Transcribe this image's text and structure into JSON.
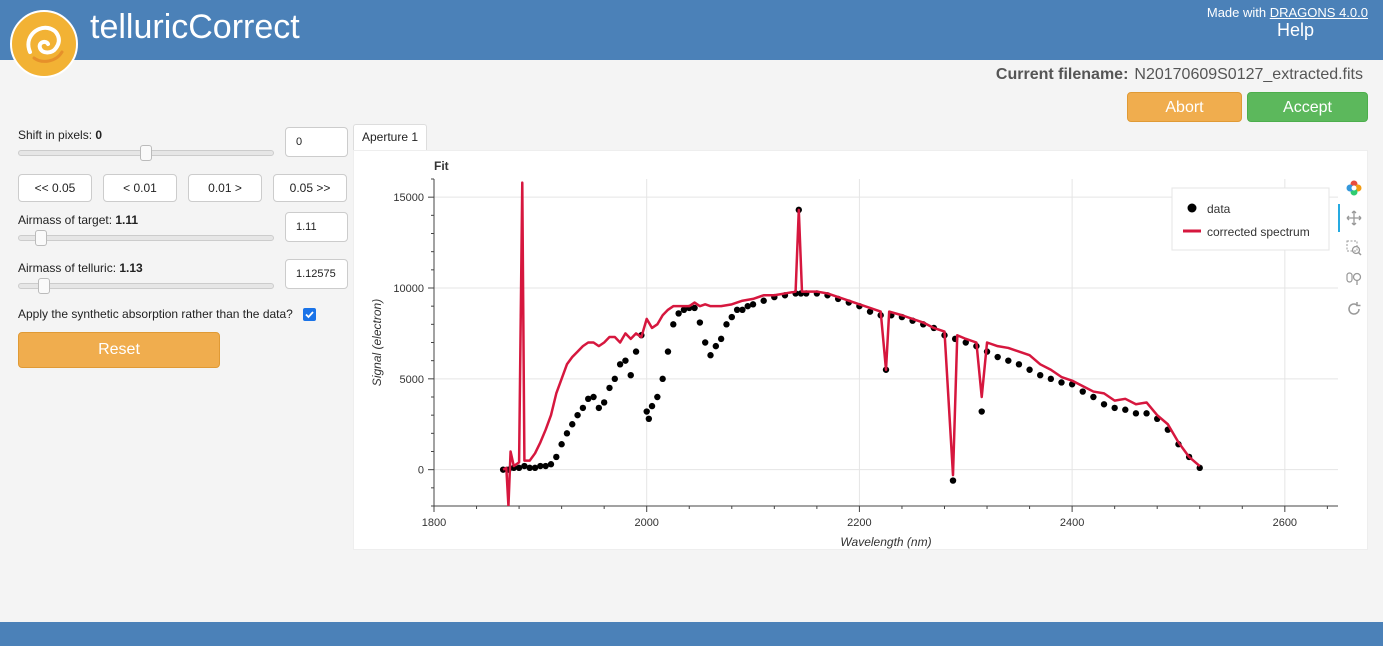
{
  "header": {
    "title": "telluricCorrect",
    "help_label": "Help",
    "color": "#4b81b8"
  },
  "file": {
    "label": "Current filename:",
    "name": "N20170609S0127_extracted.fits"
  },
  "actions": {
    "abort_label": "Abort",
    "accept_label": "Accept",
    "abort_color": "#f0ad4e",
    "accept_color": "#5cb85c"
  },
  "controls": {
    "shift": {
      "label": "Shift in pixels:",
      "value": "0",
      "input": "0",
      "slider_fraction": 0.5
    },
    "steps": [
      "<< 0.05",
      "< 0.01",
      "0.01 >",
      "0.05 >>"
    ],
    "airmass_target": {
      "label": "Airmass of target:",
      "value": "1.11",
      "input": "1.11",
      "slider_fraction": 0.07
    },
    "airmass_telluric": {
      "label": "Airmass of telluric:",
      "value": "1.13",
      "input": "1.12575",
      "slider_fraction": 0.08
    },
    "synthetic": {
      "label": "Apply the synthetic absorption rather than the data?",
      "checked": true
    },
    "reset_label": "Reset"
  },
  "tabs": [
    "Aperture 1"
  ],
  "plot": {
    "title": "Fit"
  },
  "toolbar_icons": [
    "bokeh-logo-icon",
    "pan-icon",
    "box-zoom-icon",
    "wheel-zoom-icon",
    "reset-icon"
  ],
  "chart_data": {
    "type": "line",
    "title": "Fit",
    "xlabel": "Wavelength (nm)",
    "ylabel": "Signal (electron)",
    "xlim": [
      1800,
      2650
    ],
    "ylim": [
      -2000,
      16000
    ],
    "xticks": [
      1800,
      2000,
      2200,
      2400,
      2600
    ],
    "yticks": [
      0,
      5000,
      10000,
      15000
    ],
    "grid": true,
    "legend": "top-right",
    "series": [
      {
        "name": "data",
        "kind": "scatter",
        "color": "#000000",
        "points": [
          [
            1865,
            0
          ],
          [
            1870,
            0
          ],
          [
            1875,
            100
          ],
          [
            1880,
            100
          ],
          [
            1885,
            200
          ],
          [
            1890,
            100
          ],
          [
            1895,
            100
          ],
          [
            1900,
            200
          ],
          [
            1905,
            200
          ],
          [
            1910,
            300
          ],
          [
            1915,
            700
          ],
          [
            1920,
            1400
          ],
          [
            1925,
            2000
          ],
          [
            1930,
            2500
          ],
          [
            1935,
            3000
          ],
          [
            1940,
            3400
          ],
          [
            1945,
            3900
          ],
          [
            1950,
            4000
          ],
          [
            1955,
            3400
          ],
          [
            1960,
            3700
          ],
          [
            1965,
            4500
          ],
          [
            1970,
            5000
          ],
          [
            1975,
            5800
          ],
          [
            1980,
            6000
          ],
          [
            1985,
            5200
          ],
          [
            1990,
            6500
          ],
          [
            1995,
            7400
          ],
          [
            2000,
            3200
          ],
          [
            2002,
            2800
          ],
          [
            2005,
            3500
          ],
          [
            2010,
            4000
          ],
          [
            2015,
            5000
          ],
          [
            2020,
            6500
          ],
          [
            2025,
            8000
          ],
          [
            2030,
            8600
          ],
          [
            2035,
            8800
          ],
          [
            2040,
            8900
          ],
          [
            2045,
            8900
          ],
          [
            2050,
            8100
          ],
          [
            2055,
            7000
          ],
          [
            2060,
            6300
          ],
          [
            2065,
            6800
          ],
          [
            2070,
            7200
          ],
          [
            2075,
            8000
          ],
          [
            2080,
            8400
          ],
          [
            2085,
            8800
          ],
          [
            2090,
            8800
          ],
          [
            2095,
            9000
          ],
          [
            2100,
            9100
          ],
          [
            2110,
            9300
          ],
          [
            2120,
            9500
          ],
          [
            2130,
            9600
          ],
          [
            2140,
            9700
          ],
          [
            2143,
            14300
          ],
          [
            2145,
            9700
          ],
          [
            2150,
            9700
          ],
          [
            2160,
            9700
          ],
          [
            2170,
            9600
          ],
          [
            2180,
            9400
          ],
          [
            2190,
            9200
          ],
          [
            2200,
            9000
          ],
          [
            2210,
            8700
          ],
          [
            2220,
            8500
          ],
          [
            2225,
            5500
          ],
          [
            2230,
            8500
          ],
          [
            2240,
            8400
          ],
          [
            2250,
            8200
          ],
          [
            2260,
            8000
          ],
          [
            2270,
            7800
          ],
          [
            2280,
            7400
          ],
          [
            2288,
            -600
          ],
          [
            2290,
            7200
          ],
          [
            2300,
            7000
          ],
          [
            2310,
            6800
          ],
          [
            2315,
            3200
          ],
          [
            2320,
            6500
          ],
          [
            2330,
            6200
          ],
          [
            2340,
            6000
          ],
          [
            2350,
            5800
          ],
          [
            2360,
            5500
          ],
          [
            2370,
            5200
          ],
          [
            2380,
            5000
          ],
          [
            2390,
            4800
          ],
          [
            2400,
            4700
          ],
          [
            2410,
            4300
          ],
          [
            2420,
            4000
          ],
          [
            2430,
            3600
          ],
          [
            2440,
            3400
          ],
          [
            2450,
            3300
          ],
          [
            2460,
            3100
          ],
          [
            2470,
            3100
          ],
          [
            2480,
            2800
          ],
          [
            2490,
            2200
          ],
          [
            2500,
            1400
          ],
          [
            2510,
            700
          ],
          [
            2520,
            100
          ]
        ]
      },
      {
        "name": "corrected spectrum",
        "kind": "line",
        "color": "#d6173e",
        "points": [
          [
            1865,
            0
          ],
          [
            1868,
            100
          ],
          [
            1870,
            -2000
          ],
          [
            1872,
            1000
          ],
          [
            1875,
            200
          ],
          [
            1880,
            400
          ],
          [
            1883,
            15800
          ],
          [
            1885,
            500
          ],
          [
            1890,
            500
          ],
          [
            1895,
            900
          ],
          [
            1900,
            1500
          ],
          [
            1905,
            2200
          ],
          [
            1910,
            3000
          ],
          [
            1915,
            4200
          ],
          [
            1920,
            5000
          ],
          [
            1925,
            5800
          ],
          [
            1930,
            6200
          ],
          [
            1935,
            6500
          ],
          [
            1940,
            6800
          ],
          [
            1945,
            7000
          ],
          [
            1950,
            7000
          ],
          [
            1955,
            6800
          ],
          [
            1960,
            7000
          ],
          [
            1965,
            7300
          ],
          [
            1970,
            7300
          ],
          [
            1975,
            7000
          ],
          [
            1980,
            7500
          ],
          [
            1985,
            7200
          ],
          [
            1990,
            7500
          ],
          [
            1995,
            7300
          ],
          [
            2000,
            8300
          ],
          [
            2005,
            7800
          ],
          [
            2010,
            8000
          ],
          [
            2015,
            8500
          ],
          [
            2020,
            8800
          ],
          [
            2025,
            9000
          ],
          [
            2030,
            9000
          ],
          [
            2035,
            9000
          ],
          [
            2040,
            9000
          ],
          [
            2045,
            9200
          ],
          [
            2050,
            9000
          ],
          [
            2055,
            9100
          ],
          [
            2060,
            9000
          ],
          [
            2070,
            9000
          ],
          [
            2080,
            9100
          ],
          [
            2090,
            9300
          ],
          [
            2100,
            9400
          ],
          [
            2110,
            9600
          ],
          [
            2120,
            9600
          ],
          [
            2130,
            9700
          ],
          [
            2140,
            9800
          ],
          [
            2143,
            14300
          ],
          [
            2146,
            9800
          ],
          [
            2150,
            9800
          ],
          [
            2160,
            9800
          ],
          [
            2170,
            9700
          ],
          [
            2180,
            9500
          ],
          [
            2190,
            9300
          ],
          [
            2200,
            9100
          ],
          [
            2210,
            8900
          ],
          [
            2220,
            8700
          ],
          [
            2225,
            5500
          ],
          [
            2228,
            8700
          ],
          [
            2240,
            8500
          ],
          [
            2250,
            8300
          ],
          [
            2260,
            8100
          ],
          [
            2270,
            7800
          ],
          [
            2280,
            7600
          ],
          [
            2288,
            -300
          ],
          [
            2292,
            7400
          ],
          [
            2300,
            7200
          ],
          [
            2310,
            7000
          ],
          [
            2315,
            4000
          ],
          [
            2320,
            7000
          ],
          [
            2330,
            6800
          ],
          [
            2340,
            6700
          ],
          [
            2350,
            6500
          ],
          [
            2360,
            6300
          ],
          [
            2370,
            5800
          ],
          [
            2380,
            5500
          ],
          [
            2390,
            5100
          ],
          [
            2400,
            4900
          ],
          [
            2410,
            4600
          ],
          [
            2420,
            4300
          ],
          [
            2430,
            4200
          ],
          [
            2440,
            3800
          ],
          [
            2450,
            3900
          ],
          [
            2460,
            3600
          ],
          [
            2470,
            3700
          ],
          [
            2480,
            3000
          ],
          [
            2490,
            2500
          ],
          [
            2500,
            1500
          ],
          [
            2510,
            700
          ],
          [
            2520,
            200
          ]
        ]
      }
    ]
  },
  "footer": {
    "text": "Made with",
    "link": "DRAGONS 4.0.0"
  }
}
